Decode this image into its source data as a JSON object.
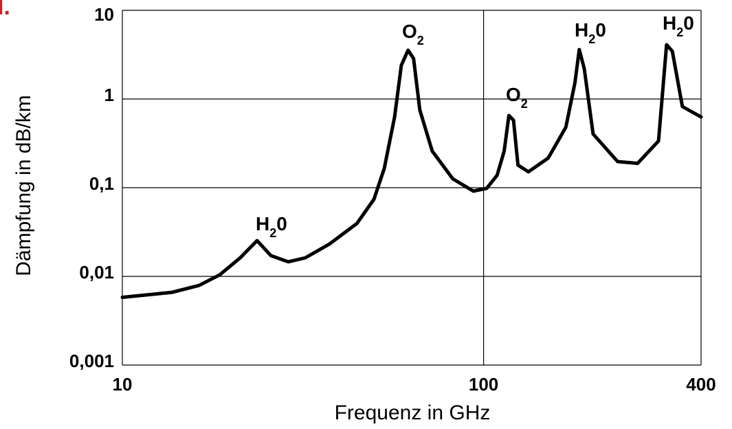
{
  "chart_data": {
    "type": "line",
    "corner_mark": "I.",
    "xlabel": "Frequenz in GHz",
    "ylabel": "Dämpfung in dB/km",
    "xscale": "log",
    "yscale": "log",
    "grid": true,
    "xlim": [
      10,
      400
    ],
    "ylim": [
      0.001,
      10
    ],
    "xticks": [
      10,
      100,
      400
    ],
    "yticks": [
      {
        "value": 0.001,
        "label": "0,001"
      },
      {
        "value": 0.01,
        "label": "0,01"
      },
      {
        "value": 0.1,
        "label": "0,1"
      },
      1,
      10
    ],
    "annotations": [
      {
        "main": "H",
        "sub": "2",
        "tail": "0"
      },
      {
        "main": "O",
        "sub": "2"
      },
      {
        "main": "O",
        "sub": "2"
      },
      {
        "main": "H",
        "sub": "2",
        "tail": "0"
      },
      {
        "main": "H",
        "sub": "2",
        "tail": "0"
      }
    ],
    "series": [
      {
        "color": "#000000",
        "x": [
          10,
          13.7,
          16.3,
          18.6,
          21.2,
          23.6,
          25.8,
          28.8,
          32.1,
          37.4,
          44.6,
          49.7,
          53.1,
          56.7,
          59.2,
          61.8,
          64.0,
          66.6,
          72.1,
          82.2,
          93.7,
          102,
          109,
          114,
          117.5,
          121,
          124.5,
          133,
          151,
          169,
          179,
          184,
          190,
          201,
          235,
          267,
          305,
          321,
          333,
          355,
          400
        ],
        "values": [
          0.0058,
          0.0066,
          0.0079,
          0.0104,
          0.0162,
          0.0253,
          0.0171,
          0.0146,
          0.0162,
          0.0231,
          0.0395,
          0.0738,
          0.165,
          0.628,
          2.4,
          3.55,
          2.86,
          0.752,
          0.258,
          0.126,
          0.0915,
          0.0984,
          0.138,
          0.258,
          0.652,
          0.577,
          0.18,
          0.151,
          0.216,
          0.481,
          1.53,
          3.61,
          2.19,
          0.403,
          0.197,
          0.188,
          0.336,
          4.09,
          3.46,
          0.822,
          0.628
        ]
      }
    ]
  }
}
